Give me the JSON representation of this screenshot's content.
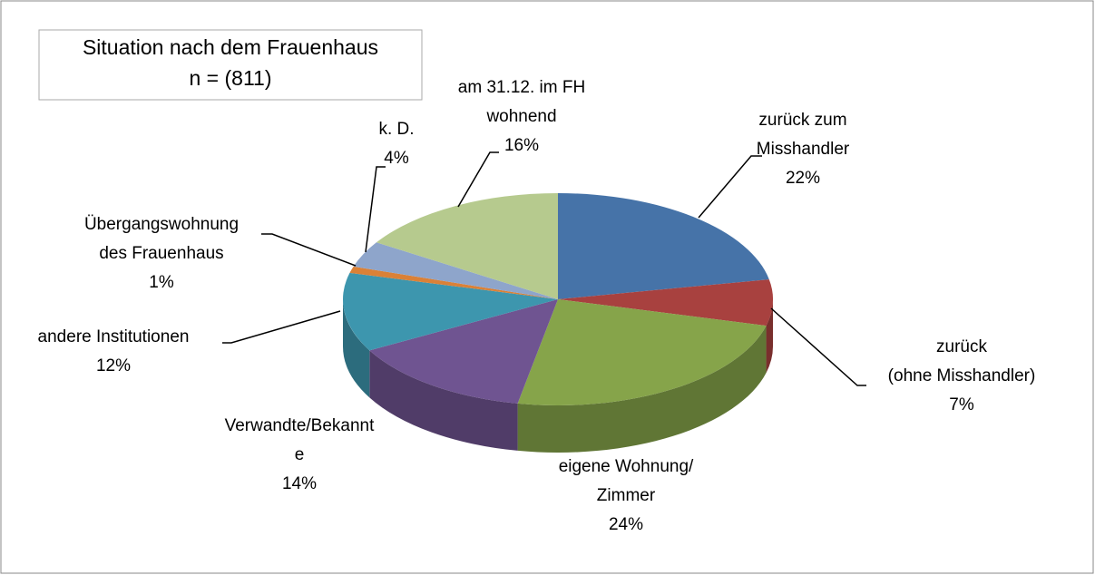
{
  "chart_data": {
    "type": "pie3d",
    "title": "Situation nach dem Frauenhaus",
    "subtitle": "n = (811)",
    "categories": [
      "zurück zum\nMisshandler",
      "zurück\n(ohne Misshandler)",
      "eigene Wohnung/\nZimmer",
      "Verwandte/Bekannt\ne",
      "andere Institutionen",
      "Übergangswohnung\ndes Frauenhaus",
      "k. D.",
      "am 31.12. im FH\nwohnend"
    ],
    "values": [
      22,
      7,
      24,
      14,
      12,
      1,
      4,
      16
    ],
    "value_labels": [
      "22%",
      "7%",
      "24%",
      "14%",
      "12%",
      "1%",
      "4%",
      "16%"
    ],
    "colors": [
      "#4673a8",
      "#a8413f",
      "#86a44a",
      "#6f5491",
      "#3d96ae",
      "#da8137",
      "#8ea5cb",
      "#b6ca8e"
    ]
  }
}
